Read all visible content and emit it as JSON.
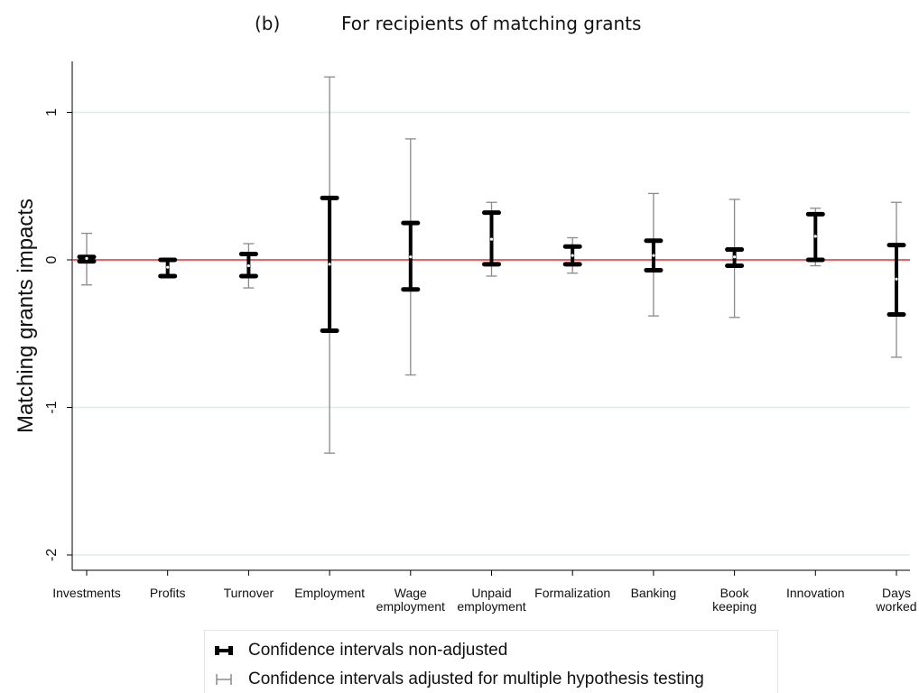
{
  "title": {
    "prefix": "(b)",
    "text": "For recipients of matching grants"
  },
  "chart_data": {
    "type": "errorbar",
    "ylabel": "Matching grants impacts",
    "xlabel": "",
    "ylim": [
      -2.1,
      1.35
    ],
    "yticks": [
      -2,
      -1,
      0,
      1
    ],
    "reference_line": 0,
    "grid": true,
    "categories": [
      [
        "Investments"
      ],
      [
        "Profits"
      ],
      [
        "Turnover"
      ],
      [
        "Employment"
      ],
      [
        "Wage",
        "employment"
      ],
      [
        "Unpaid",
        "employment"
      ],
      [
        "Formalization"
      ],
      [
        "Banking"
      ],
      [
        "Book",
        "keeping"
      ],
      [
        "Innovation"
      ],
      [
        "Days",
        "worked"
      ]
    ],
    "series": [
      {
        "name": "Confidence intervals non-adjusted",
        "estimate": [
          0.01,
          -0.05,
          -0.04,
          -0.03,
          0.02,
          0.14,
          0.03,
          0.03,
          0.02,
          0.16,
          -0.13
        ],
        "lower": [
          -0.01,
          -0.11,
          -0.11,
          -0.48,
          -0.2,
          -0.03,
          -0.03,
          -0.07,
          -0.04,
          0.0,
          -0.37
        ],
        "upper": [
          0.02,
          0.0,
          0.04,
          0.42,
          0.25,
          0.32,
          0.09,
          0.13,
          0.07,
          0.31,
          0.1
        ]
      },
      {
        "name": "Confidence intervals adjusted for multiple hypothesis testing",
        "estimate": [
          0.01,
          -0.05,
          -0.04,
          -0.03,
          0.02,
          0.14,
          0.03,
          0.03,
          0.02,
          0.16,
          -0.13
        ],
        "lower": [
          -0.17,
          -0.11,
          -0.19,
          -1.31,
          -0.78,
          -0.11,
          -0.09,
          -0.38,
          -0.39,
          -0.04,
          -0.66
        ],
        "upper": [
          0.18,
          0.01,
          0.11,
          1.24,
          0.82,
          0.39,
          0.15,
          0.45,
          0.41,
          0.35,
          0.39
        ]
      }
    ],
    "colors": {
      "reference": "#e03030",
      "grid": "#dceeee",
      "adjusted": "#8a8a8a",
      "nonadjusted": "#000000"
    },
    "legend_position": "bottom"
  }
}
